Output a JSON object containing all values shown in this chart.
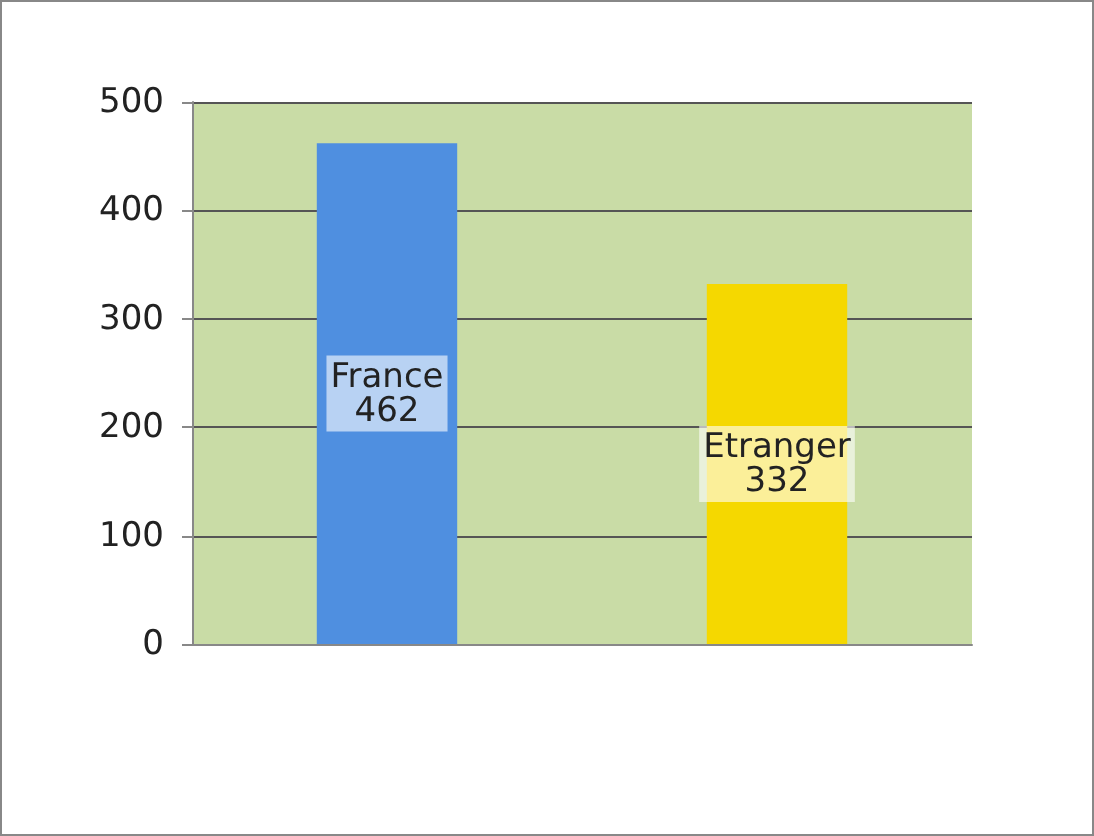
{
  "chart_data": {
    "type": "bar",
    "categories": [
      "France",
      "Etranger"
    ],
    "values": [
      462,
      332
    ],
    "colors": [
      "#4f8fe0",
      "#f5d800"
    ],
    "ylim": [
      0,
      500
    ],
    "yticks": [
      0,
      100,
      200,
      300,
      400,
      500
    ],
    "grid": "y",
    "data_labels": true,
    "tick_labels": "y"
  }
}
